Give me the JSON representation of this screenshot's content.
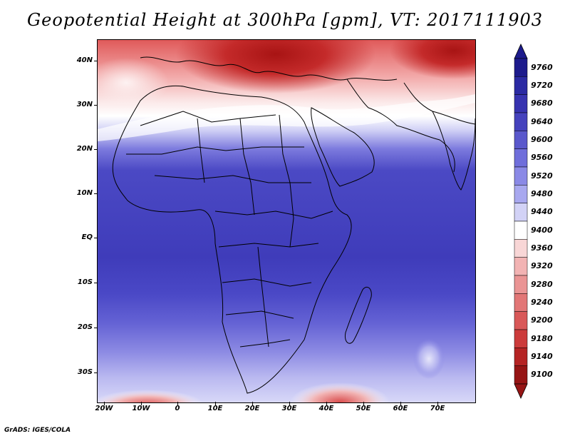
{
  "title": "Geopotential Height at 300hPa [gpm], VT: 2017111903",
  "credit": "GrADS: IGES/COLA",
  "latitude_labels": [
    "40N",
    "30N",
    "20N",
    "10N",
    "EQ",
    "10S",
    "20S",
    "30S"
  ],
  "longitude_labels": [
    "20W",
    "10W",
    "0",
    "10E",
    "20E",
    "30E",
    "40E",
    "50E",
    "60E",
    "70E"
  ],
  "colorbar": {
    "levels": [
      "9760",
      "9720",
      "9680",
      "9640",
      "9600",
      "9560",
      "9520",
      "9480",
      "9440",
      "9400",
      "9360",
      "9320",
      "9280",
      "9240",
      "9200",
      "9180",
      "9140",
      "9100"
    ],
    "colors": [
      "#1d1b8c",
      "#2b2aa3",
      "#3733b0",
      "#4542bd",
      "#5a58cc",
      "#6f6edb",
      "#8a89e6",
      "#a8a8ef",
      "#d2d2f6",
      "#ffffff",
      "#f8d6d6",
      "#f2b3b3",
      "#ea9494",
      "#e27676",
      "#d95858",
      "#cc3b3b",
      "#b52424",
      "#961515"
    ]
  },
  "colors": {
    "deep_blue": "#3b38b4",
    "mid_blue": "#4a48c6",
    "light_blue": "#8d8be6",
    "white": "#f6f6fd",
    "light_red": "#f5c4c4",
    "mid_red": "#e27070",
    "deep_red": "#b71d1d"
  }
}
